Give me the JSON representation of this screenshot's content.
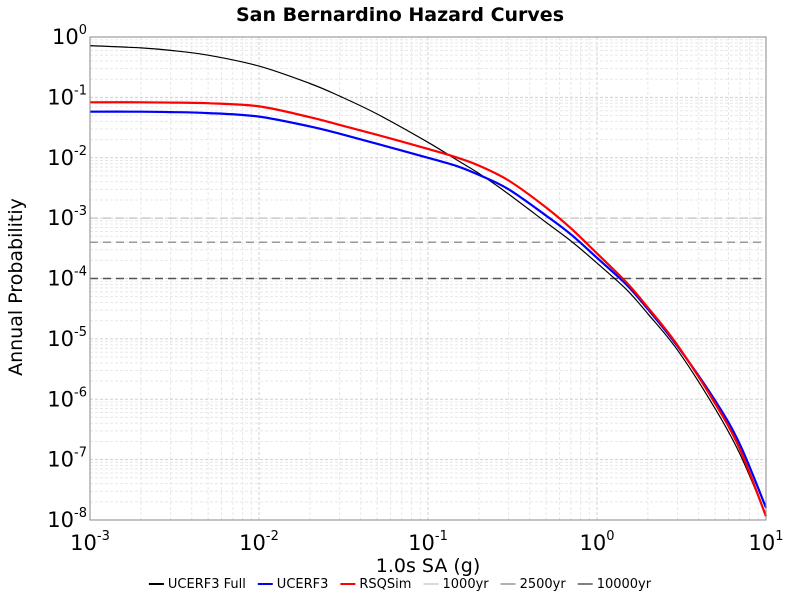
{
  "chart_data": {
    "type": "line",
    "title": "San Bernardino Hazard Curves",
    "xlabel": "1.0s SA (g)",
    "ylabel": "Annual Probabilitiy",
    "x_scale": "log",
    "y_scale": "log",
    "xlim": [
      0.001,
      10
    ],
    "ylim": [
      1e-08,
      1
    ],
    "grid": true,
    "legend_position": "bottom",
    "x_ticks": [
      {
        "base": "10",
        "exp": "-3",
        "value": 0.001
      },
      {
        "base": "10",
        "exp": "-2",
        "value": 0.01
      },
      {
        "base": "10",
        "exp": "-1",
        "value": 0.1
      },
      {
        "base": "10",
        "exp": "0",
        "value": 1
      },
      {
        "base": "10",
        "exp": "1",
        "value": 10
      }
    ],
    "y_ticks": [
      {
        "base": "10",
        "exp": "0",
        "value": 1
      },
      {
        "base": "10",
        "exp": "-1",
        "value": 0.1
      },
      {
        "base": "10",
        "exp": "-2",
        "value": 0.01
      },
      {
        "base": "10",
        "exp": "-3",
        "value": 0.001
      },
      {
        "base": "10",
        "exp": "-4",
        "value": 0.0001
      },
      {
        "base": "10",
        "exp": "-5",
        "value": 1e-05
      },
      {
        "base": "10",
        "exp": "-6",
        "value": 1e-06
      },
      {
        "base": "10",
        "exp": "-7",
        "value": 1e-07
      },
      {
        "base": "10",
        "exp": "-8",
        "value": 1e-08
      }
    ],
    "series": [
      {
        "name": "UCERF3 Full",
        "color": "#000000",
        "style": "solid",
        "x": [
          0.001,
          0.002,
          0.003,
          0.005,
          0.01,
          0.02,
          0.03,
          0.05,
          0.1,
          0.15,
          0.2,
          0.3,
          0.5,
          0.7,
          1.0,
          1.5,
          2.0,
          3.0,
          5.0,
          7.0,
          10.0
        ],
        "y": [
          0.72,
          0.66,
          0.6,
          0.5,
          0.33,
          0.17,
          0.105,
          0.053,
          0.018,
          0.009,
          0.0055,
          0.0025,
          0.00085,
          0.00042,
          0.00018,
          6.5e-05,
          2.6e-05,
          6.5e-06,
          7e-07,
          1.25e-07,
          1.2e-08
        ]
      },
      {
        "name": "UCERF3",
        "color": "#0000ff",
        "style": "solid",
        "x": [
          0.001,
          0.002,
          0.003,
          0.005,
          0.01,
          0.02,
          0.03,
          0.05,
          0.1,
          0.15,
          0.2,
          0.3,
          0.5,
          0.7,
          1.0,
          1.5,
          2.0,
          3.0,
          5.0,
          7.0,
          10.0
        ],
        "y": [
          0.058,
          0.058,
          0.057,
          0.055,
          0.048,
          0.033,
          0.025,
          0.017,
          0.01,
          0.0072,
          0.0052,
          0.003,
          0.0011,
          0.00054,
          0.00022,
          7.8e-05,
          3.1e-05,
          7.5e-06,
          9.5e-07,
          1.8e-07,
          1.6e-08
        ]
      },
      {
        "name": "RSQSim",
        "color": "#ff0000",
        "style": "solid",
        "x": [
          0.001,
          0.002,
          0.003,
          0.005,
          0.01,
          0.02,
          0.03,
          0.05,
          0.1,
          0.15,
          0.2,
          0.3,
          0.5,
          0.7,
          1.0,
          1.5,
          2.0,
          3.0,
          5.0,
          7.0,
          10.0
        ],
        "y": [
          0.083,
          0.083,
          0.082,
          0.08,
          0.071,
          0.047,
          0.035,
          0.024,
          0.014,
          0.01,
          0.0074,
          0.0042,
          0.0015,
          0.00068,
          0.00026,
          8.5e-05,
          3.3e-05,
          7.8e-06,
          8.5e-07,
          1.5e-07,
          1.15e-08
        ]
      },
      {
        "name": "1000yr",
        "color": "#cccccc",
        "style": "dashed",
        "x": [
          0.001,
          10.0
        ],
        "y": [
          0.001,
          0.001
        ]
      },
      {
        "name": "2500yr",
        "color": "#999999",
        "style": "dashed",
        "x": [
          0.001,
          10.0
        ],
        "y": [
          0.0004,
          0.0004
        ]
      },
      {
        "name": "10000yr",
        "color": "#555555",
        "style": "dashed",
        "x": [
          0.001,
          10.0
        ],
        "y": [
          0.0001,
          0.0001
        ]
      }
    ]
  }
}
